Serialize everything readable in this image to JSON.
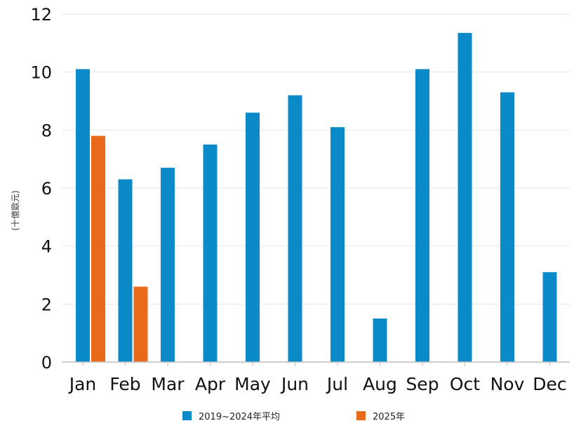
{
  "chart_data": {
    "type": "bar",
    "ylabel": "(十億歐元)",
    "ylim": [
      0,
      12
    ],
    "yticks": [
      0,
      2,
      4,
      6,
      8,
      10,
      12
    ],
    "grid": true,
    "legend_position": "bottom",
    "categories": [
      "Jan",
      "Feb",
      "Mar",
      "Apr",
      "May",
      "Jun",
      "Jul",
      "Aug",
      "Sep",
      "Oct",
      "Nov",
      "Dec"
    ],
    "series": [
      {
        "name": "2019~2024年平均",
        "color": "#0a8ac8",
        "values": [
          10.1,
          6.3,
          6.7,
          7.5,
          8.6,
          9.2,
          8.1,
          1.5,
          10.1,
          11.35,
          9.3,
          3.1
        ]
      },
      {
        "name": "2025年",
        "color": "#ea6a1c",
        "values": [
          7.8,
          2.6,
          null,
          null,
          null,
          null,
          null,
          null,
          null,
          null,
          null,
          null
        ]
      }
    ]
  }
}
